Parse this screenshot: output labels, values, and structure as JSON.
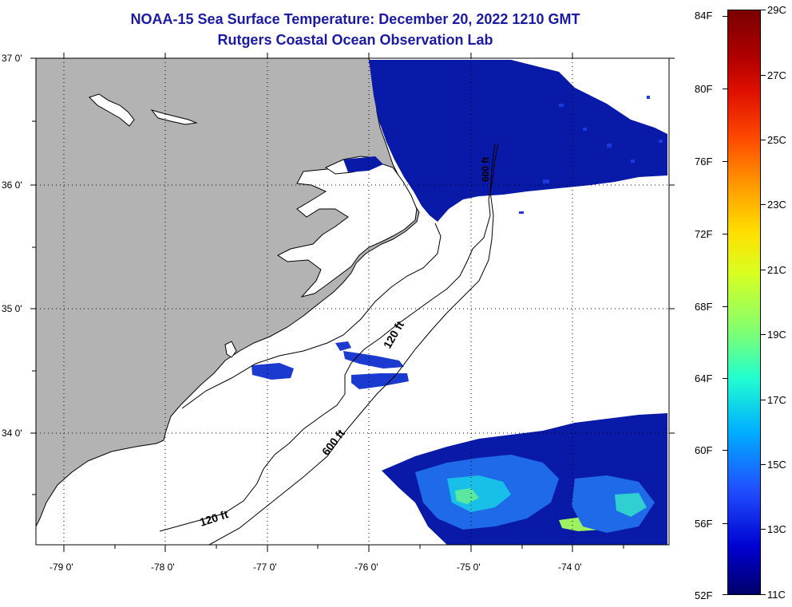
{
  "title": {
    "line1": "NOAA-15 Sea Surface Temperature:  December 20, 2022 1210 GMT",
    "line2": "Rutgers Coastal Ocean Observation Lab"
  },
  "lat_labels": [
    "37 0'",
    "36 0'",
    "35 0'",
    "34 0'"
  ],
  "lon_labels": [
    "-79 0'",
    "-78 0'",
    "-77 0'",
    "-76 0'",
    "-75 0'",
    "-74 0'"
  ],
  "contour_labels": {
    "shelf_120_north": "120 ft",
    "shelf_120_south": "120 ft",
    "slope_600": "600 ft",
    "slope_600_north": "600 ft"
  },
  "colorbar": {
    "fahrenheit": [
      "84F",
      "80F",
      "76F",
      "72F",
      "68F",
      "64F",
      "60F",
      "56F",
      "52F"
    ],
    "celsius": [
      "29C",
      "27C",
      "25C",
      "23C",
      "21C",
      "19C",
      "17C",
      "15C",
      "13C",
      "11C"
    ]
  },
  "colors": {
    "land": "#b3b3b3",
    "title": "#1a1aa6",
    "cold_sst": "#0a1aa8"
  }
}
